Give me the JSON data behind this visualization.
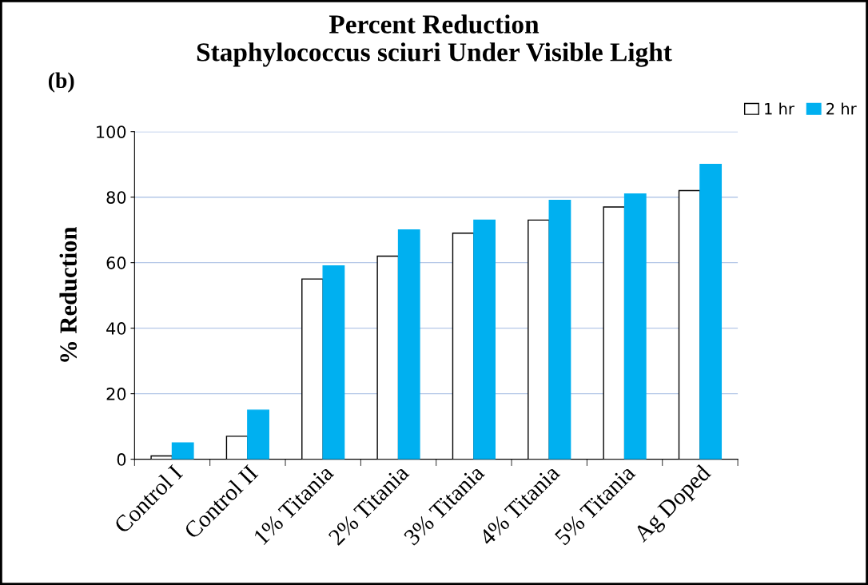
{
  "chart_data": {
    "type": "bar",
    "title": "Percent Reduction\nStaphylococcus sciuri Under Visible Light",
    "ylabel": "% Reduction",
    "annotations": [
      "(b)"
    ],
    "categories": [
      "Control I",
      "Control II",
      "1% Titania",
      "2% Titania",
      "3% Titania",
      "4% Titania",
      "5% Titania",
      "Ag Doped"
    ],
    "series": [
      {
        "name": "1 hr",
        "color": "#ffffff",
        "values": [
          1,
          7,
          55,
          62,
          69,
          73,
          77,
          82
        ]
      },
      {
        "name": "2 hr",
        "color": "#00b0f0",
        "values": [
          5,
          15,
          59,
          70,
          73,
          79,
          81,
          90
        ]
      }
    ],
    "ylim": [
      0,
      100
    ],
    "yticks": [
      0,
      20,
      40,
      60,
      80,
      100
    ],
    "grid": "y",
    "legend": "top right"
  }
}
